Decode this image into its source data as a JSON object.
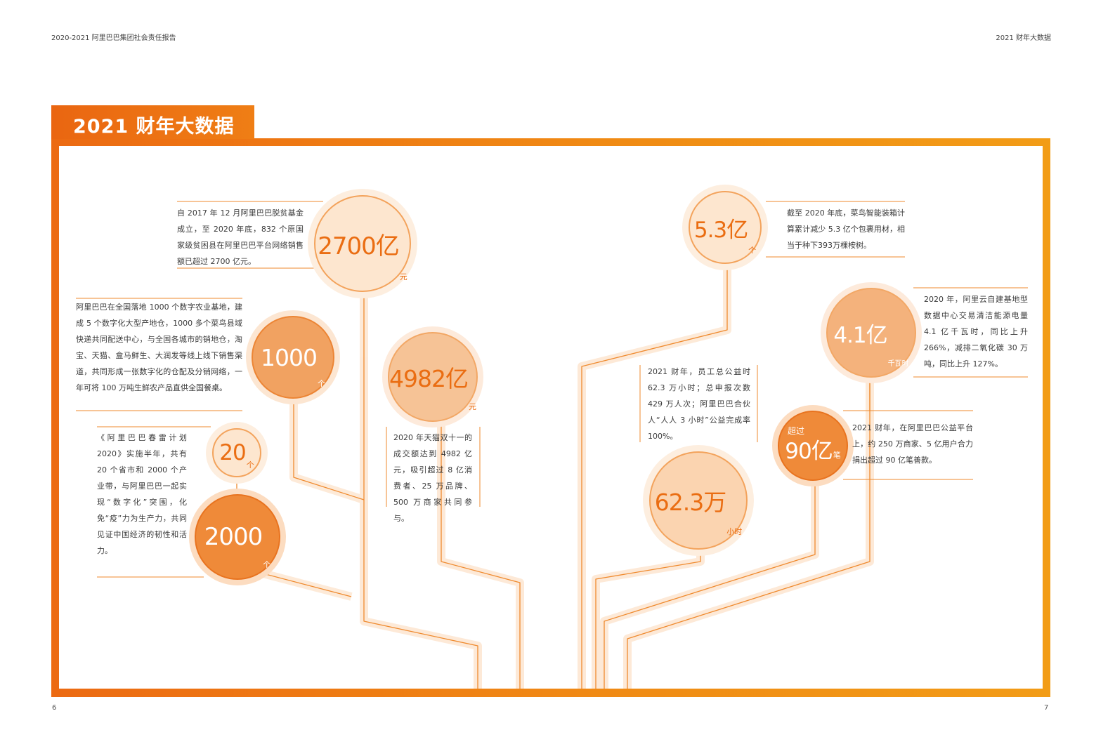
{
  "header": {
    "left": "2020-2021 阿里巴巴集团社会责任报告",
    "right": "2021 财年大数据"
  },
  "page_numbers": {
    "left": "6",
    "right": "7"
  },
  "title": "2021 财年大数据",
  "stats": {
    "s2700": {
      "value": "2700亿",
      "unit": "元",
      "text": "自 2017 年 12 月阿里巴巴脱贫基金成立，至 2020 年底，832 个原国家级贫困县在阿里巴巴平台网络销售额已超过 2700 亿元。"
    },
    "s1000": {
      "value": "1000",
      "unit": "个",
      "text": "阿里巴巴在全国落地 1000 个数字农业基地，建成 5 个数字化大型产地仓，1000 多个菜鸟县域快递共同配送中心，与全国各城市的销地仓，淘宝、天猫、盒马鲜生、大润发等线上线下销售渠道，共同形成一张数字化的仓配及分销网络，一年可将 100 万吨生鲜农产品直供全国餐桌。"
    },
    "s4982": {
      "value": "4982亿",
      "unit": "元",
      "text": "2020 年天猫双十一的成交额达到 4982 亿元，吸引超过 8 亿消费者、25 万品牌、500 万商家共同参与。"
    },
    "s20": {
      "value": "20",
      "unit": "个"
    },
    "s2000": {
      "value": "2000",
      "unit": "个",
      "text": "《阿里巴巴春雷计划 2020》实施半年，共有 20 个省市和 2000 个产业带，与阿里巴巴一起实现“数字化”突围，化免“疫”力为生产力，共同见证中国经济的韧性和活力。"
    },
    "s53": {
      "value": "5.3亿",
      "unit": "个",
      "text": "截至 2020 年底，菜鸟智能装箱计算累计减少 5.3 亿个包裹用材，相当于种下393万棵桉树。"
    },
    "s41": {
      "value": "4.1亿",
      "unit": "千瓦时",
      "text": "2020 年，阿里云自建基地型数据中心交易清洁能源电量 4.1 亿千瓦时，同比上升 266%，减排二氧化碳 30 万吨，同比上升 127%。"
    },
    "s623": {
      "value": "62.3万",
      "unit": "小时",
      "text": "2021 财年，员工总公益时 62.3 万小时；总申报次数 429 万人次；阿里巴巴合伙人“人人 3 小时”公益完成率 100%。"
    },
    "s90": {
      "prefix": "超过",
      "value": "90亿",
      "unit": "笔",
      "text": "2021 财年，在阿里巴巴公益平台上，约 250 万商家、5 亿用户合力捐出超过 90 亿笔善款。"
    }
  },
  "colors": {
    "accent": "#ef7d15",
    "line": "#ef8a2e",
    "glow": "#fde3c9"
  }
}
